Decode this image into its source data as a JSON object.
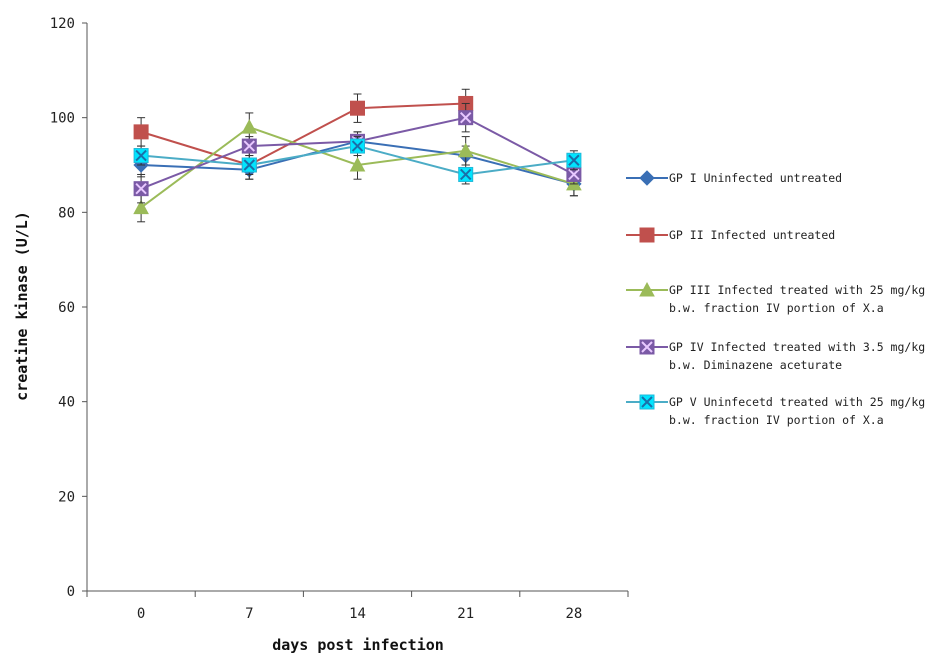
{
  "chart_data": {
    "type": "line",
    "title": "",
    "xlabel": "days post infection",
    "ylabel": "creatine kinase (U/L)",
    "categories": [
      "0",
      "7",
      "14",
      "21",
      "28"
    ],
    "yticks": [
      "0",
      "20",
      "40",
      "60",
      "80",
      "100",
      "120"
    ],
    "ylim": [
      0,
      120
    ],
    "grid": false,
    "legend_position": "right",
    "series": [
      {
        "name": "GP I Uninfected untreated",
        "color": "#3a6fb5",
        "marker": "diamond",
        "values": [
          90,
          89,
          95,
          92,
          86
        ],
        "errors": [
          2.5,
          2,
          2,
          2,
          2.5
        ]
      },
      {
        "name": "GP II Infected untreated",
        "color": "#c0504d",
        "marker": "square",
        "values": [
          97,
          90,
          102,
          103,
          null
        ],
        "errors": [
          3,
          3,
          3,
          3,
          null
        ]
      },
      {
        "name": "GP III Infected treated with 25 mg/kg b.w. fraction IV portion of X.a",
        "color": "#9bbb59",
        "marker": "triangle",
        "values": [
          81,
          98,
          90,
          93,
          86
        ],
        "errors": [
          3,
          3,
          3,
          3,
          2.5
        ]
      },
      {
        "name": "GP IV Infected treated with 3.5 mg/kg b.w. Diminazene aceturate",
        "color": "#7b5aa6",
        "marker": "square-x",
        "values": [
          85,
          94,
          95,
          100,
          88
        ],
        "errors": [
          3,
          2,
          2,
          3,
          2
        ]
      },
      {
        "name": "GP V Uninfecetd treated with 25 mg/kg b.w. fraction IV portion of X.a",
        "color": "#4bacc6",
        "marker": "x-square",
        "values": [
          92,
          90,
          94,
          88,
          91
        ],
        "errors": [
          2,
          2,
          2,
          2,
          2
        ]
      }
    ]
  },
  "legend": {
    "items": [
      {
        "label": "GP I Uninfected untreated"
      },
      {
        "label": "GP II Infected untreated"
      },
      {
        "label": "GP III Infected treated with 25 mg/kg b.w. fraction IV portion of X.a"
      },
      {
        "label": "GP IV Infected treated with 3.5 mg/kg b.w. Diminazene aceturate"
      },
      {
        "label": "GP V Uninfecetd treated with 25 mg/kg b.w. fraction IV portion of X.a"
      }
    ]
  }
}
